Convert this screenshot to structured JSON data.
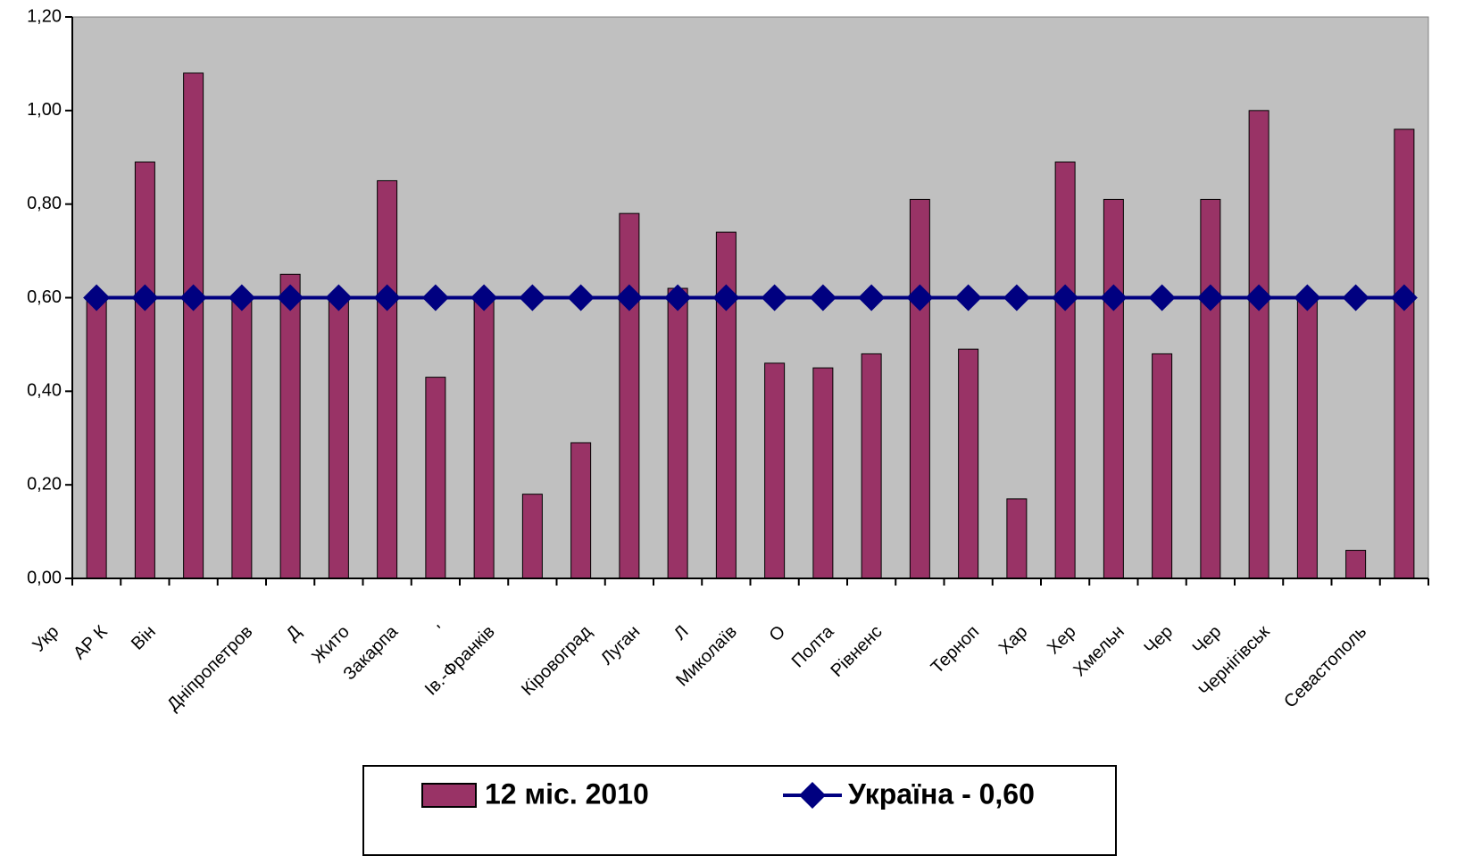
{
  "chart_data": {
    "type": "bar_line",
    "categories": [
      "Укр",
      "АР К",
      "Він",
      null,
      "Дніпропетров",
      "Д",
      "Жито",
      "Закарпа",
      "'",
      "Ів.-Франків",
      null,
      "Кіровоград",
      "Луган",
      "Л",
      "Миколаїв",
      "О",
      "Полта",
      "Рівненс",
      null,
      "Терноп",
      "Хар",
      "Хер",
      "Хмельн",
      "Чер",
      "Чер",
      "Чернігівськ",
      null,
      "Севастополь"
    ],
    "series": [
      {
        "name": "12 міс. 2010",
        "type": "bar",
        "color": "#993366",
        "values": [
          0.6,
          0.89,
          1.08,
          0.6,
          0.65,
          0.6,
          0.85,
          0.43,
          0.6,
          0.18,
          0.29,
          0.78,
          0.62,
          0.74,
          0.46,
          0.45,
          0.48,
          0.81,
          0.49,
          0.17,
          0.89,
          0.81,
          0.48,
          0.81,
          1.0,
          0.6,
          0.06,
          0.96
        ]
      },
      {
        "name": "Україна - 0,60",
        "type": "line",
        "color": "#000080",
        "values": [
          0.6,
          0.6,
          0.6,
          0.6,
          0.6,
          0.6,
          0.6,
          0.6,
          0.6,
          0.6,
          0.6,
          0.6,
          0.6,
          0.6,
          0.6,
          0.6,
          0.6,
          0.6,
          0.6,
          0.6,
          0.6,
          0.6,
          0.6,
          0.6,
          0.6,
          0.6,
          0.6,
          0.6
        ]
      }
    ],
    "ylim": [
      0,
      1.2
    ],
    "yticks": [
      {
        "value": 0,
        "label": "0,00"
      },
      {
        "value": 0.2,
        "label": "0,20"
      },
      {
        "value": 0.4,
        "label": "0,40"
      },
      {
        "value": 0.6,
        "label": "0,60"
      },
      {
        "value": 0.8,
        "label": "0,80"
      },
      {
        "value": 1.0,
        "label": "1,00"
      },
      {
        "value": 1.2,
        "label": "1,20"
      }
    ],
    "plot_background": "#c0c0c0"
  }
}
